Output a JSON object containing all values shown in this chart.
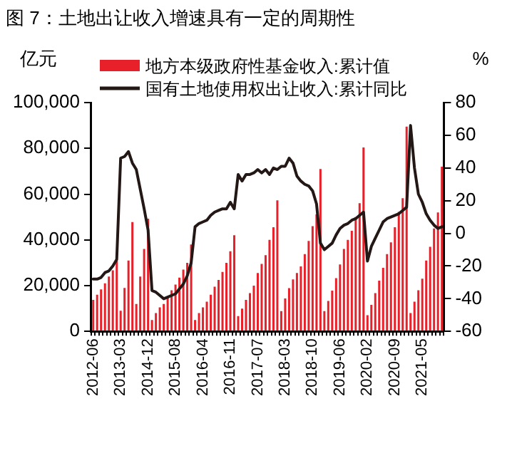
{
  "chart_data": {
    "type": "bar",
    "title": "图 7：土地出让收入增速具有一定的周期性",
    "ylabel": "亿元",
    "y2label": "%",
    "categories": [
      "2012-06",
      null,
      null,
      null,
      null,
      null,
      null,
      "2013-03",
      null,
      null,
      null,
      null,
      null,
      null,
      "2014-12",
      null,
      null,
      null,
      null,
      null,
      null,
      "2015-08",
      null,
      null,
      null,
      null,
      null,
      null,
      "2016-04",
      null,
      null,
      null,
      null,
      null,
      null,
      "2016-11",
      null,
      null,
      null,
      null,
      null,
      null,
      "2017-07",
      null,
      null,
      null,
      null,
      null,
      null,
      "2018-03",
      null,
      null,
      null,
      null,
      null,
      null,
      "2018-10",
      null,
      null,
      null,
      null,
      null,
      null,
      "2019-06",
      null,
      null,
      null,
      null,
      null,
      null,
      "2020-02",
      null,
      null,
      null,
      null,
      null,
      null,
      "2020-09",
      null,
      null,
      null,
      null,
      null,
      null,
      "2021-05",
      null,
      null,
      null,
      null,
      null
    ],
    "series": [
      {
        "name": "地方本级政府性基金收入:累计值",
        "color": "#e8202a",
        "values": [
          13800,
          16000,
          18400,
          21000,
          24000,
          26700,
          31000,
          9000,
          19000,
          31000,
          47800,
          12000,
          24000,
          36000,
          49300,
          5000,
          8000,
          10500,
          12000,
          15000,
          18000,
          20500,
          23500,
          27000,
          30000,
          38000,
          5000,
          8000,
          10500,
          13000,
          16000,
          19500,
          22500,
          26000,
          30000,
          35000,
          42000,
          6700,
          10000,
          13800,
          16700,
          20000,
          25500,
          29500,
          33300,
          40000,
          45500,
          57300,
          8900,
          14400,
          18900,
          22700,
          25500,
          28400,
          33800,
          39500,
          46000,
          51100,
          71000,
          8900,
          13300,
          17800,
          23300,
          29300,
          36000,
          40000,
          44000,
          50000,
          56000,
          80400,
          7100,
          11600,
          16700,
          22200,
          27800,
          33800,
          38900,
          45500,
          52200,
          58200,
          89500,
          8000,
          13000,
          18000,
          23000,
          31000,
          37000,
          45000,
          52000,
          72000
        ]
      },
      {
        "name": "国有土地使用权出让收入:累计同比",
        "type": "line",
        "axis": "y2",
        "color": "#231815",
        "values": [
          -28,
          -28,
          -27,
          -24,
          -23,
          -20,
          -16,
          46,
          47,
          50,
          43,
          39,
          27,
          15,
          2,
          -35,
          -36,
          -38,
          -40,
          -39,
          -38,
          -37,
          -34,
          -31,
          -26,
          -18,
          4,
          6,
          7,
          8,
          11,
          13,
          14,
          15,
          15,
          19,
          15,
          36,
          32,
          36,
          36,
          37,
          39,
          37,
          39,
          36,
          40,
          39,
          41,
          41,
          46,
          43,
          35,
          32,
          30,
          29,
          26,
          18,
          -6,
          -10,
          -8,
          -6,
          -1,
          3,
          5,
          6,
          8,
          9,
          11,
          13,
          -17,
          -8,
          -3,
          2,
          7,
          9,
          10,
          11,
          12,
          14,
          16,
          66,
          40,
          24,
          19,
          12,
          8,
          5,
          3,
          4
        ]
      }
    ],
    "ylim": [
      0,
      100000
    ],
    "yticks": [
      0,
      {
        "value": 20000,
        "label": "20,000"
      },
      {
        "value": 40000,
        "label": "40,000"
      },
      {
        "value": 60000,
        "label": "60,000"
      },
      {
        "value": 80000,
        "label": "80,000"
      },
      {
        "value": 100000,
        "label": "100,000"
      }
    ],
    "y2lim": [
      -60,
      80
    ],
    "y2ticks": [
      -60,
      -40,
      -20,
      0,
      20,
      40,
      60,
      80
    ],
    "legend": "top left",
    "marker": "none"
  }
}
